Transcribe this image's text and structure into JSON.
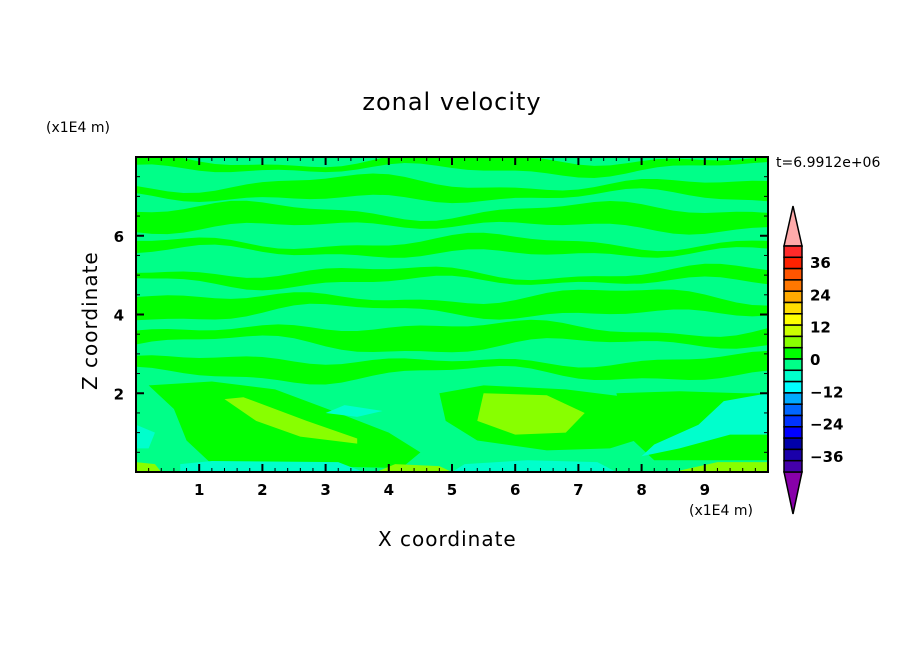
{
  "chart_data": {
    "type": "contour",
    "title": "zonal velocity",
    "xlabel": "X coordinate",
    "ylabel": "Z coordinate",
    "x_unit": "(x1E4 m)",
    "y_unit": "(x1E4 m)",
    "time_label": "t=6.9912e+06",
    "xlim": [
      0,
      10
    ],
    "ylim": [
      0,
      8
    ],
    "x_ticks": [
      1,
      2,
      3,
      4,
      5,
      6,
      7,
      8,
      9
    ],
    "y_ticks": [
      2,
      4,
      6
    ],
    "colorbar": {
      "levels": [
        -42,
        -39,
        -36,
        -33,
        -30,
        -27,
        -24,
        -21,
        -18,
        -15,
        -12,
        -9,
        -6,
        -3,
        0,
        3,
        6,
        9,
        12,
        15,
        18,
        21,
        24,
        27,
        30,
        33,
        36,
        39,
        42
      ],
      "tick_labels": [
        "36",
        "24",
        "12",
        "0",
        "−12",
        "−24",
        "−36"
      ],
      "tick_values": [
        36,
        24,
        12,
        0,
        -12,
        -24,
        -36
      ],
      "colors_top_to_bottom": [
        "#ff2a2a",
        "#ff2200",
        "#ff5500",
        "#ff7700",
        "#ffaa00",
        "#ffdd00",
        "#ffff00",
        "#ccff00",
        "#88ff00",
        "#00ff00",
        "#00ff88",
        "#00ffcc",
        "#00ffff",
        "#00aaff",
        "#0066ff",
        "#0033ff",
        "#0000ff",
        "#0000aa",
        "#1a00aa",
        "#4400aa"
      ],
      "over_color": "#ffaaaa",
      "under_color": "#8800aa"
    },
    "field_colors": {
      "background": "#00ff88",
      "positive_weak": "#00ff00",
      "positive": "#88ff00",
      "negative_weak": "#00ffcc"
    }
  }
}
